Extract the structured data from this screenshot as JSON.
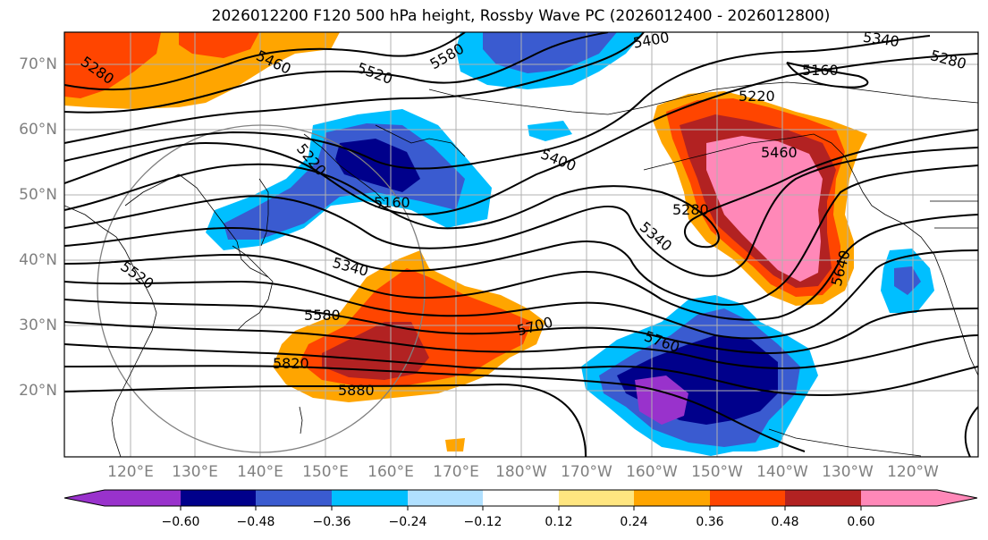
{
  "title": "2026012200 F120 500 hPa height, Rossby Wave PC (2026012400 - 2026012800)",
  "colors": {
    "purple": "#9932cc",
    "navy": "#00008b",
    "royal": "#3a5bd0",
    "sky": "#00bfff",
    "lightblue": "#b0e0ff",
    "white": "#ffffff",
    "lightyellow": "#ffe680",
    "orange": "#ffa500",
    "redorange": "#ff4500",
    "firebrick": "#b22222",
    "pink": "#ff88b8"
  },
  "latitude_labels": [
    "70°N",
    "60°N",
    "50°N",
    "40°N",
    "30°N",
    "20°N"
  ],
  "longitude_labels": [
    "120°E",
    "130°E",
    "140°E",
    "150°E",
    "160°E",
    "170°E",
    "180°W",
    "170°W",
    "160°W",
    "150°W",
    "140°W",
    "130°W",
    "120°W"
  ],
  "contour_labels": [
    "5280",
    "5460",
    "5520",
    "5580",
    "5400",
    "5340",
    "5280",
    "5160",
    "5220",
    "5220",
    "5400",
    "5160",
    "5280",
    "5460",
    "5340",
    "5340",
    "5520",
    "5580",
    "5700",
    "5760",
    "5640",
    "5820",
    "5880"
  ],
  "colorbar": {
    "ticks": [
      "−0.60",
      "−0.48",
      "−0.36",
      "−0.24",
      "−0.12",
      "0.12",
      "0.24",
      "0.36",
      "0.48",
      "0.60"
    ],
    "levels": [
      -0.6,
      -0.48,
      -0.36,
      -0.24,
      -0.12,
      0.12,
      0.24,
      0.36,
      0.48,
      0.6
    ]
  }
}
